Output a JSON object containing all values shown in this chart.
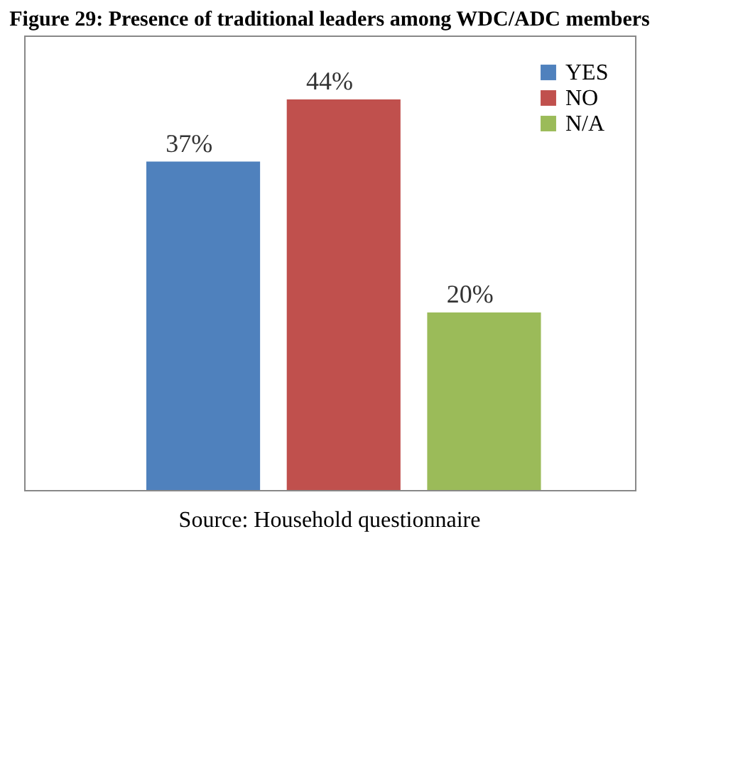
{
  "chart_data": {
    "type": "bar",
    "title": "Figure 29: Presence of traditional leaders among WDC/ADC members",
    "categories": [
      null
    ],
    "series": [
      {
        "name": "YES",
        "color": "#4f81bd",
        "values": [
          37
        ],
        "value_labels": [
          "37%"
        ]
      },
      {
        "name": "NO",
        "color": "#c0504d",
        "values": [
          44
        ],
        "value_labels": [
          "44%"
        ]
      },
      {
        "name": "N/A",
        "color": "#9bbb59",
        "values": [
          20
        ],
        "value_labels": [
          "20%"
        ]
      }
    ],
    "legend": "top right",
    "tick_labels": false,
    "grid": false,
    "annotations": [
      "Source: Household questionnaire"
    ]
  }
}
